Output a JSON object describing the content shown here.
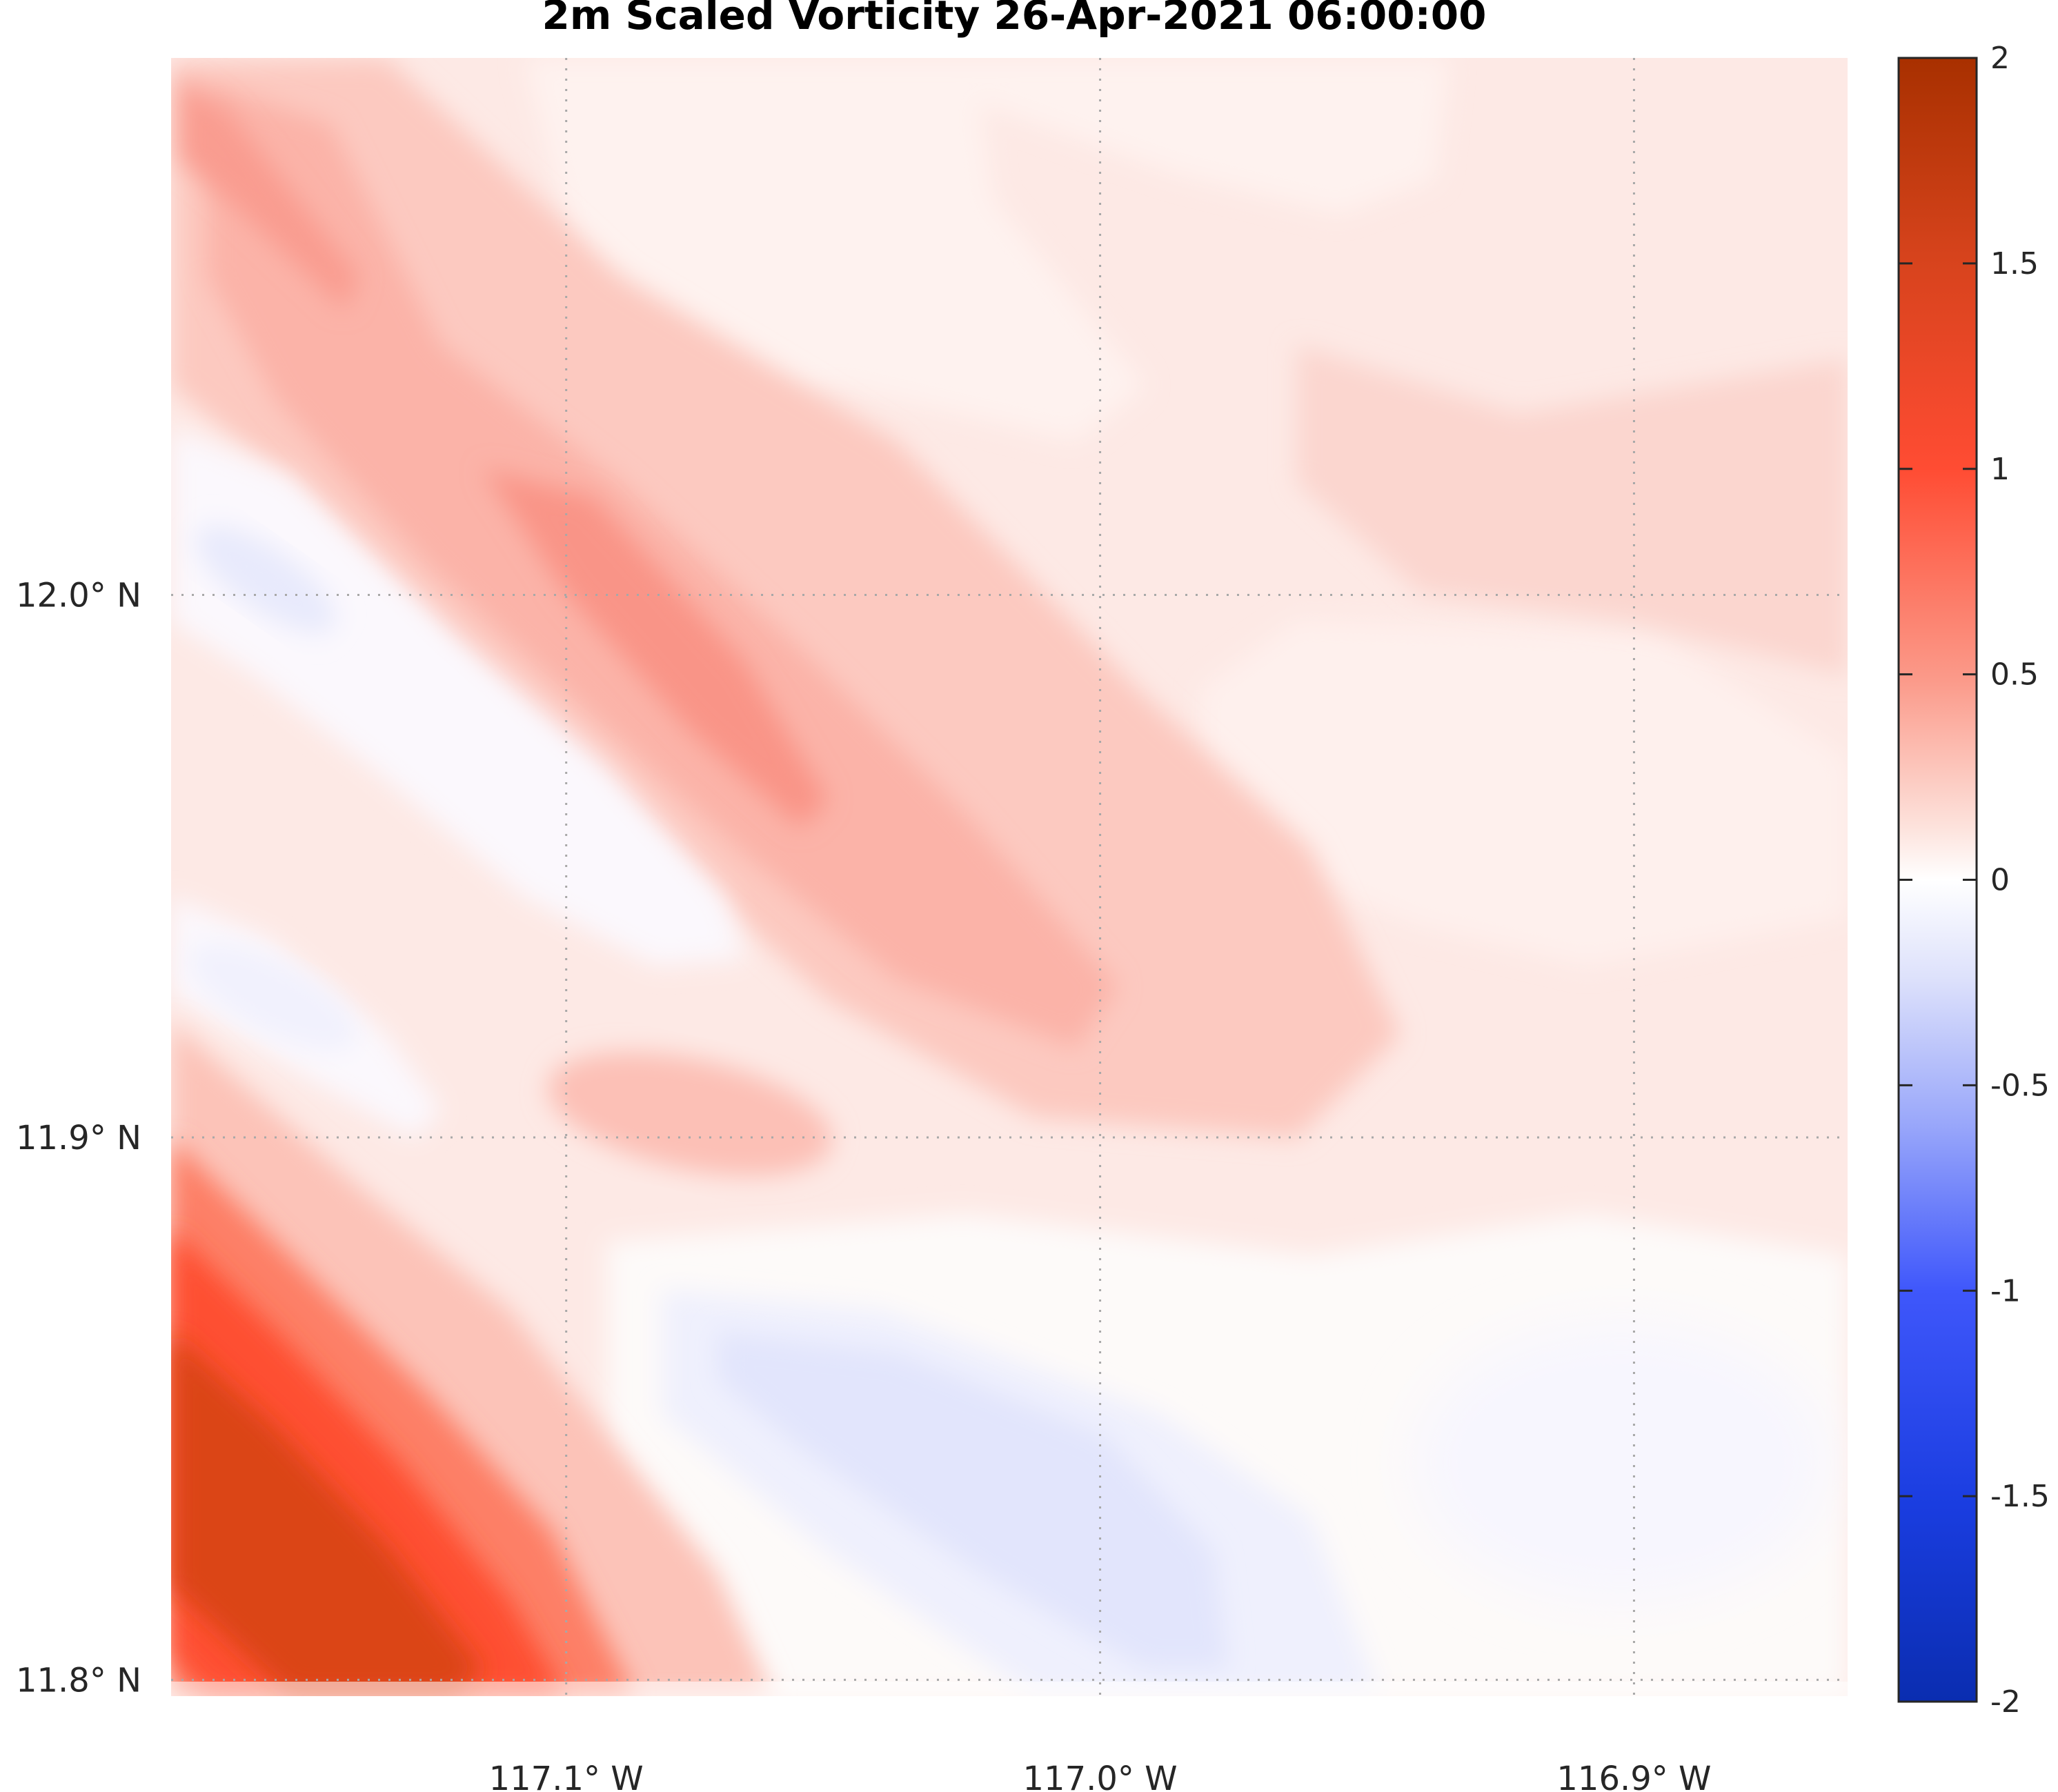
{
  "chart_data": {
    "type": "heatmap",
    "title": "2m Scaled Vorticity  26-Apr-2021 06:00:00",
    "xlabel": "",
    "ylabel": "",
    "x_ticks": [
      {
        "value": -117.1,
        "label": "117.1° W"
      },
      {
        "value": -117.0,
        "label": "117.0° W"
      },
      {
        "value": -116.9,
        "label": "116.9° W"
      }
    ],
    "y_ticks": [
      {
        "value": 11.8,
        "label": "11.8° N"
      },
      {
        "value": 11.9,
        "label": "11.9° N"
      },
      {
        "value": 12.0,
        "label": "12.0° N"
      }
    ],
    "xlim": [
      -117.174,
      -116.86
    ],
    "ylim": [
      11.797,
      12.099
    ],
    "grid": true,
    "colorbar": {
      "range": [
        -2,
        2
      ],
      "ticks": [
        {
          "value": 2,
          "label": "2"
        },
        {
          "value": 1.5,
          "label": "1.5"
        },
        {
          "value": 1,
          "label": "1"
        },
        {
          "value": 0.5,
          "label": "0.5"
        },
        {
          "value": 0,
          "label": "0"
        },
        {
          "value": -0.5,
          "label": "-0.5"
        },
        {
          "value": -1,
          "label": "-1"
        },
        {
          "value": -1.5,
          "label": "-1.5"
        },
        {
          "value": -2,
          "label": "-2"
        }
      ],
      "colors": {
        "max": "#b22a05",
        "mid": "#ffffff",
        "min": "#0b2fb0"
      }
    },
    "features": [
      {
        "name": "strong positive band",
        "lon": -117.14,
        "lat": 11.83,
        "value": 1.7
      },
      {
        "name": "positive ridge",
        "lon": -117.06,
        "lat": 11.98,
        "value": 0.6
      },
      {
        "name": "positive ridge north",
        "lon": -117.15,
        "lat": 12.07,
        "value": 0.5
      },
      {
        "name": "weak positive",
        "lon": -117.06,
        "lat": 11.91,
        "value": 0.4
      },
      {
        "name": "negative pocket",
        "lon": -117.15,
        "lat": 12.0,
        "value": -0.15
      },
      {
        "name": "negative pocket",
        "lon": -117.15,
        "lat": 11.93,
        "value": -0.05
      },
      {
        "name": "negative band",
        "lon": -117.02,
        "lat": 11.84,
        "value": -0.25
      },
      {
        "name": "weak negative east",
        "lon": -116.9,
        "lat": 11.84,
        "value": -0.05
      }
    ]
  }
}
